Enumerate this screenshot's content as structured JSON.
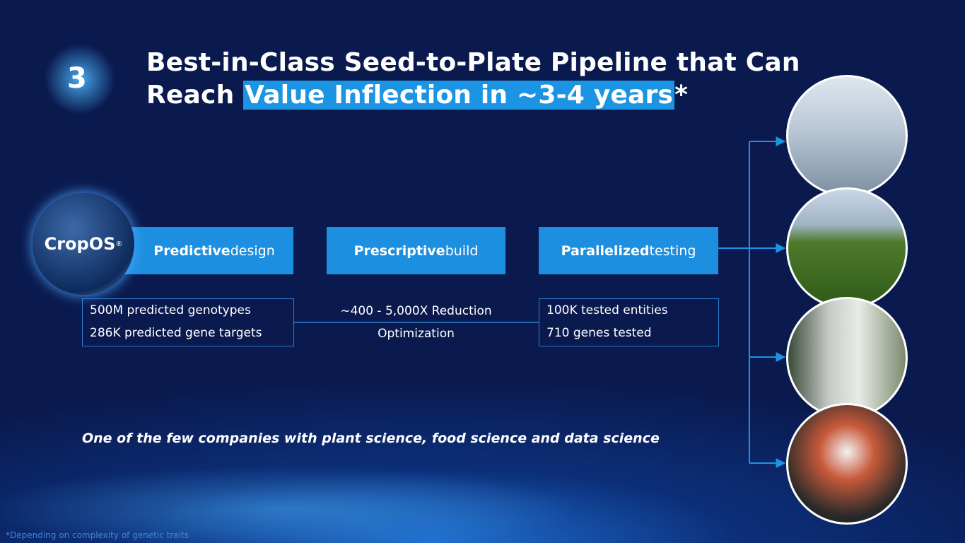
{
  "badge": "3",
  "title": {
    "line1": "Best-in-Class Seed-to-Plate Pipeline that Can",
    "line2_lead": "Reach ",
    "line2_highlight": "Value Inflection in ~3-4 years",
    "line2_tail": "*"
  },
  "logo": {
    "name": "CropOS",
    "mark": "®"
  },
  "stages": [
    {
      "bold": "Predictive",
      "rest": " design"
    },
    {
      "bold": "Prescriptive",
      "rest": " build"
    },
    {
      "bold": "Parallelized",
      "rest": " testing"
    }
  ],
  "metrics": {
    "design": [
      "500M predicted genotypes",
      "286K predicted gene targets"
    ],
    "build": [
      "~400 - 5,000X Reduction",
      "Optimization"
    ],
    "testing": [
      "100K tested entities",
      "710 genes tested"
    ]
  },
  "tagline": "One of the few companies with plant science, food science and data science",
  "footnote": "*Depending on complexity of genetic traits"
}
